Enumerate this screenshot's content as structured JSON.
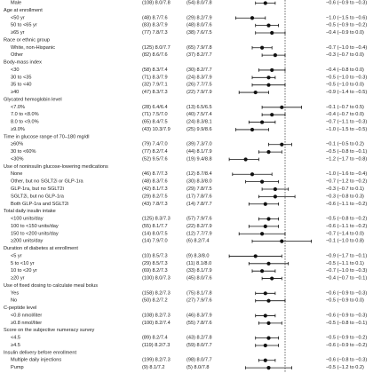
{
  "chart_data": {
    "type": "forest",
    "null_value": 0,
    "rows": [
      {
        "kind": "sub",
        "label": "Male",
        "n1": "(108) 8.0/7.8",
        "n2": "(54) 8.0/7.8",
        "est": -0.6,
        "lo": -0.9,
        "hi": -0.3,
        "ci_text": "−0.6 (−0.9 to −0.3)"
      },
      {
        "kind": "head",
        "label": "Age at enrollment"
      },
      {
        "kind": "sub",
        "label": "<50 yr",
        "n1": "(48) 8.7/7.6",
        "n2": "(29) 8.2/7.9",
        "est": -1.0,
        "lo": -1.5,
        "hi": -0.6,
        "ci_text": "−1.0 (−1.5 to −0.6)"
      },
      {
        "kind": "sub",
        "label": "50 to <65 yr",
        "n1": "(83) 8.3/7.9",
        "n2": "(48) 8.0/7.6",
        "est": -0.5,
        "lo": -0.9,
        "hi": -0.2,
        "ci_text": "−0.5 (−0.9 to −0.2)"
      },
      {
        "kind": "sub",
        "label": "≥65 yr",
        "n1": "(77) 7.8/7.3",
        "n2": "(38) 7.6/7.5",
        "est": -0.4,
        "lo": -0.9,
        "hi": 0.0,
        "ci_text": "−0.4 (−0.9 to 0.0)"
      },
      {
        "kind": "head",
        "label": "Race or ethnic group"
      },
      {
        "kind": "sub",
        "label": "White, non-Hispanic",
        "n1": "(125) 8.0/7.7",
        "n2": "(65) 7.9/7.8",
        "est": -0.7,
        "lo": -1.0,
        "hi": -0.4,
        "ci_text": "−0.7 (−1.0 to −0.4)"
      },
      {
        "kind": "sub",
        "label": "Other",
        "n1": "(82) 8.6/7.6",
        "n2": "(37) 8.2/7.7",
        "est": -0.3,
        "lo": -0.7,
        "hi": 0.0,
        "ci_text": "−0.3 (−0.7 to 0.0)"
      },
      {
        "kind": "head",
        "label": "Body-mass index"
      },
      {
        "kind": "sub",
        "label": "<30",
        "n1": "(58) 8.3/7.4",
        "n2": "(30) 8.2/7.7",
        "est": -0.4,
        "lo": -0.8,
        "hi": 0.0,
        "ci_text": "−0.4 (−0.8 to 0.0)"
      },
      {
        "kind": "sub",
        "label": "30 to <35",
        "n1": "(71) 8.3/7.9",
        "n2": "(24) 8.3/7.9",
        "est": -0.5,
        "lo": -1.0,
        "hi": -0.3,
        "ci_text": "−0.5 (−1.0 to −0.3)"
      },
      {
        "kind": "sub",
        "label": "35 to <40",
        "n1": "(32) 7.9/7.1",
        "n2": "(26) 7.7/7.5",
        "est": -0.5,
        "lo": -1.0,
        "hi": 0.0,
        "ci_text": "−0.5 (−1.0 to 0.0)"
      },
      {
        "kind": "sub",
        "label": "≥40",
        "n1": "(47) 8.3/7.3",
        "n2": "(22) 7.9/7.9",
        "est": -0.9,
        "lo": -1.4,
        "hi": -0.5,
        "ci_text": "−0.9 (−1.4 to −0.5)"
      },
      {
        "kind": "head",
        "label": "Glycated hemoglobin level"
      },
      {
        "kind": "sub",
        "label": "<7.0%",
        "n1": "(28) 6.4/6.4",
        "n2": "(13) 6.5/6.5",
        "est": -0.1,
        "lo": -0.7,
        "hi": 0.5,
        "ci_text": "−0.1 (−0.7 to 0.5)"
      },
      {
        "kind": "sub",
        "label": "7.0 to <8.0%",
        "n1": "(71) 7.5/7.0",
        "n2": "(40) 7.5/7.4",
        "est": -0.4,
        "lo": -0.7,
        "hi": 0.0,
        "ci_text": "−0.4 (−0.7 to 0.0)"
      },
      {
        "kind": "sub",
        "label": "8.0 to <9.0%",
        "n1": "(65) 8.4/7.5",
        "n2": "(24) 8.3/8.1",
        "est": -0.7,
        "lo": -1.1,
        "hi": -0.3,
        "ci_text": "−0.7 (−1.1 to −0.3)"
      },
      {
        "kind": "sub",
        "label": "≥9.0%",
        "n1": "(43) 10.3/7.9",
        "n2": "(25) 9.9/8.6",
        "est": -1.0,
        "lo": -1.5,
        "hi": -0.5,
        "ci_text": "−1.0 (−1.5 to −0.5)"
      },
      {
        "kind": "head",
        "label": "Time in glucose range of 70–180 mg/dl"
      },
      {
        "kind": "sub",
        "label": "≥60%",
        "n1": "(79) 7.4/7.0",
        "n2": "(39) 7.3/7.0",
        "est": -0.1,
        "lo": -0.5,
        "hi": 0.2,
        "ci_text": "−0.1 (−0.5 to 0.2)"
      },
      {
        "kind": "sub",
        "label": "30 to <60%",
        "n1": "(77) 8.2/7.4",
        "n2": "(44) 8.1/7.9",
        "est": -0.5,
        "lo": -0.8,
        "hi": -0.1,
        "ci_text": "−0.5 (−0.8 to −0.1)"
      },
      {
        "kind": "sub",
        "label": "<30%",
        "n1": "(52) 9.5/7.6",
        "n2": "(19) 9.4/8.8",
        "est": -1.2,
        "lo": -1.7,
        "hi": -0.8,
        "ci_text": "−1.2 (−1.7 to −0.8)"
      },
      {
        "kind": "head",
        "label": "Use of noninsulin glucose-lowering medications"
      },
      {
        "kind": "sub",
        "label": "None",
        "n1": "(46) 8.7/7.3",
        "n2": "(12) 8.7/8.4",
        "est": -1.0,
        "lo": -1.6,
        "hi": -0.4,
        "ci_text": "−1.0 (−1.6 to −0.4)"
      },
      {
        "kind": "sub",
        "label": "Other, but no SGLT2i or GLP-1ra",
        "n1": "(48) 8.3/7.6",
        "n2": "(30) 8.3/8.0",
        "est": -0.7,
        "lo": -1.2,
        "hi": -0.2,
        "ci_text": "−0.7 (−1.2 to −0.2)"
      },
      {
        "kind": "sub",
        "label": "GLP-1ra, but no SGLT2i",
        "n1": "(42) 8.1/7.3",
        "n2": "(29) 7.8/7.5",
        "est": -0.3,
        "lo": -0.7,
        "hi": 0.1,
        "ci_text": "−0.3 (−0.7 to 0.1)"
      },
      {
        "kind": "sub",
        "label": "SGLT2i, but no GLP-1ra",
        "n1": "(29) 8.2/7.5",
        "n2": "(17) 7.8/7.6",
        "est": -0.3,
        "lo": -0.8,
        "hi": 0.3,
        "ci_text": "−0.3 (−0.8 to 0.3)"
      },
      {
        "kind": "sub",
        "label": "Both GLP-1ra and SGLT2i",
        "n1": "(43) 7.8/7.3",
        "n2": "(14) 7.8/7.7",
        "est": -0.6,
        "lo": -1.1,
        "hi": -0.2,
        "ci_text": "−0.6 (−1.1 to −0.2)"
      },
      {
        "kind": "head",
        "label": "Total daily insulin intake"
      },
      {
        "kind": "sub",
        "label": "<100 units/day",
        "n1": "(125) 8.3/7.3",
        "n2": "(57) 7.9/7.6",
        "est": -0.5,
        "lo": -0.8,
        "hi": -0.2,
        "ci_text": "−0.5 (−0.8 to −0.2)"
      },
      {
        "kind": "sub",
        "label": "100 to <150 units/day",
        "n1": "(55) 8.1/7.7",
        "n2": "(22) 8.2/7.9",
        "est": -0.6,
        "lo": -1.1,
        "hi": -0.2,
        "ci_text": "−0.6 (−1.1 to −0.2)"
      },
      {
        "kind": "sub",
        "label": "150 to <200 units/day",
        "n1": "(14) 8.0/7.5",
        "n2": "(12) 7.7/7.9",
        "est": -0.7,
        "lo": -1.4,
        "hi": 0.0,
        "ci_text": "−0.7 (−1.4 to 0.0)"
      },
      {
        "kind": "sub",
        "label": "≥200 units/day",
        "n1": "(14) 7.9/7.0",
        "n2": "(6) 8.2/7.4",
        "est": -0.1,
        "lo": -1.0,
        "hi": 0.8,
        "ci_text": "−0.1 (−1.0 to 0.8)"
      },
      {
        "kind": "head",
        "label": "Duration of diabetes at enrollment"
      },
      {
        "kind": "sub",
        "label": "<5 yr",
        "n1": "(10) 8.5/7.3",
        "n2": "(9) 8.3/8.0",
        "est": -0.9,
        "lo": -1.7,
        "hi": -0.1,
        "ci_text": "−0.9 (−1.7 to −0.1)"
      },
      {
        "kind": "sub",
        "label": "5 to <10 yr",
        "n1": "(29) 8.5/7.3",
        "n2": "(11) 8.1/8.0",
        "est": -0.5,
        "lo": -1.1,
        "hi": 0.1,
        "ci_text": "−0.5 (−1.1 to 0.1)"
      },
      {
        "kind": "sub",
        "label": "10 to <20 yr",
        "n1": "(69) 8.2/7.3",
        "n2": "(33) 8.1/7.9",
        "est": -0.7,
        "lo": -1.0,
        "hi": -0.3,
        "ci_text": "−0.7 (−1.0 to −0.3)"
      },
      {
        "kind": "sub",
        "label": "≥20 yr",
        "n1": "(100) 8.0/7.3",
        "n2": "(45) 8.0/7.6",
        "est": -0.4,
        "lo": -0.7,
        "hi": -0.1,
        "ci_text": "−0.4 (−0.7 to −0.1)"
      },
      {
        "kind": "head",
        "label": "Use of fixed dosing to calculate meal bolus"
      },
      {
        "kind": "sub",
        "label": "Yes",
        "n1": "(158) 8.2/7.3",
        "n2": "(75) 8.1/7.8",
        "est": -0.6,
        "lo": -0.9,
        "hi": -0.3,
        "ci_text": "−0.6 (−0.9 to −0.3)"
      },
      {
        "kind": "sub",
        "label": "No",
        "n1": "(50) 8.2/7.2",
        "n2": "(27) 7.9/7.6",
        "est": -0.5,
        "lo": -0.9,
        "hi": 0.0,
        "ci_text": "−0.5 (−0.9 to 0.0)"
      },
      {
        "kind": "head",
        "label": "C-peptide level"
      },
      {
        "kind": "sub",
        "label": "<0.8 nmol/liter",
        "n1": "(108) 8.2/7.3",
        "n2": "(46) 8.3/7.9",
        "est": -0.6,
        "lo": -0.9,
        "hi": -0.3,
        "ci_text": "−0.6 (−0.9 to −0.3)"
      },
      {
        "kind": "sub",
        "label": "≥0.8 nmol/liter",
        "n1": "(100) 8.2/7.4",
        "n2": "(55) 7.8/7.6",
        "est": -0.5,
        "lo": -0.8,
        "hi": -0.1,
        "ci_text": "−0.5 (−0.8 to −0.1)"
      },
      {
        "kind": "head",
        "label": "Score on the subjective numeracy survey"
      },
      {
        "kind": "sub",
        "label": "<4.5",
        "n1": "(89) 8.2/7.4",
        "n2": "(43) 8.2/7.8",
        "est": -0.5,
        "lo": -0.9,
        "hi": -0.2,
        "ci_text": "−0.5 (−0.9 to −0.2)"
      },
      {
        "kind": "sub",
        "label": "≥4.5",
        "n1": "(119) 8.2/7.3",
        "n2": "(59) 8.0/7.7",
        "est": -0.6,
        "lo": -0.9,
        "hi": -0.2,
        "ci_text": "−0.6 (−0.9 to −0.2)"
      },
      {
        "kind": "head",
        "label": "Insulin delivery before enrollment"
      },
      {
        "kind": "sub",
        "label": "Multiple daily injections",
        "n1": "(199) 8.2/7.3",
        "n2": "(98) 8.0/7.7",
        "est": -0.6,
        "lo": -0.8,
        "hi": -0.3,
        "ci_text": "−0.6 (−0.8 to −0.3)"
      },
      {
        "kind": "sub",
        "label": "Pump",
        "n1": "(9) 8.1/7.2",
        "n2": "(5) 8.0/7.8",
        "est": -0.5,
        "lo": -1.2,
        "hi": 0.2,
        "ci_text": "−0.5 (−1.2 to 0.2)"
      }
    ]
  }
}
